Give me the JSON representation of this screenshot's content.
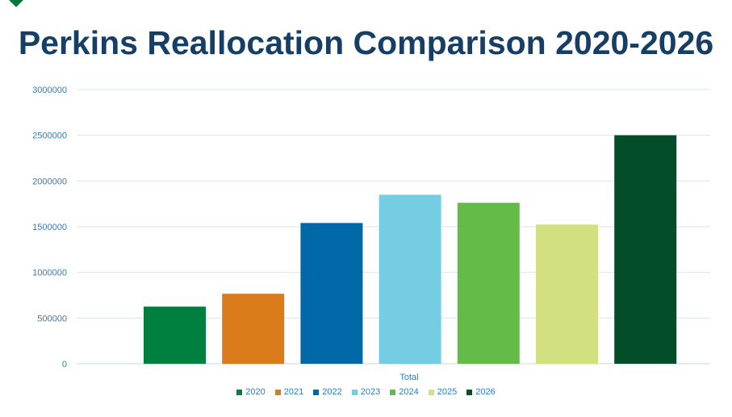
{
  "chart_data": {
    "type": "bar",
    "title": "Perkins Reallocation Comparison 2020-2026",
    "xlabel": "",
    "ylabel": "",
    "categories": [
      "Total"
    ],
    "ylim": [
      0,
      3000000
    ],
    "yticks": [
      "0",
      "500000",
      "1000000",
      "1500000",
      "2000000",
      "2500000",
      "3000000"
    ],
    "grid": true,
    "legend_position": "bottom",
    "series": [
      {
        "name": "2020",
        "values": [
          625000
        ],
        "color": "#00803f"
      },
      {
        "name": "2021",
        "values": [
          766000
        ],
        "color": "#d97b1b"
      },
      {
        "name": "2022",
        "values": [
          1540000
        ],
        "color": "#0068a6"
      },
      {
        "name": "2023",
        "values": [
          1849000
        ],
        "color": "#74cde3"
      },
      {
        "name": "2024",
        "values": [
          1761000
        ],
        "color": "#64bb48"
      },
      {
        "name": "2025",
        "values": [
          1523000
        ],
        "color": "#d3e07f"
      },
      {
        "name": "2026",
        "values": [
          2500000
        ],
        "color": "#034d28"
      }
    ]
  }
}
